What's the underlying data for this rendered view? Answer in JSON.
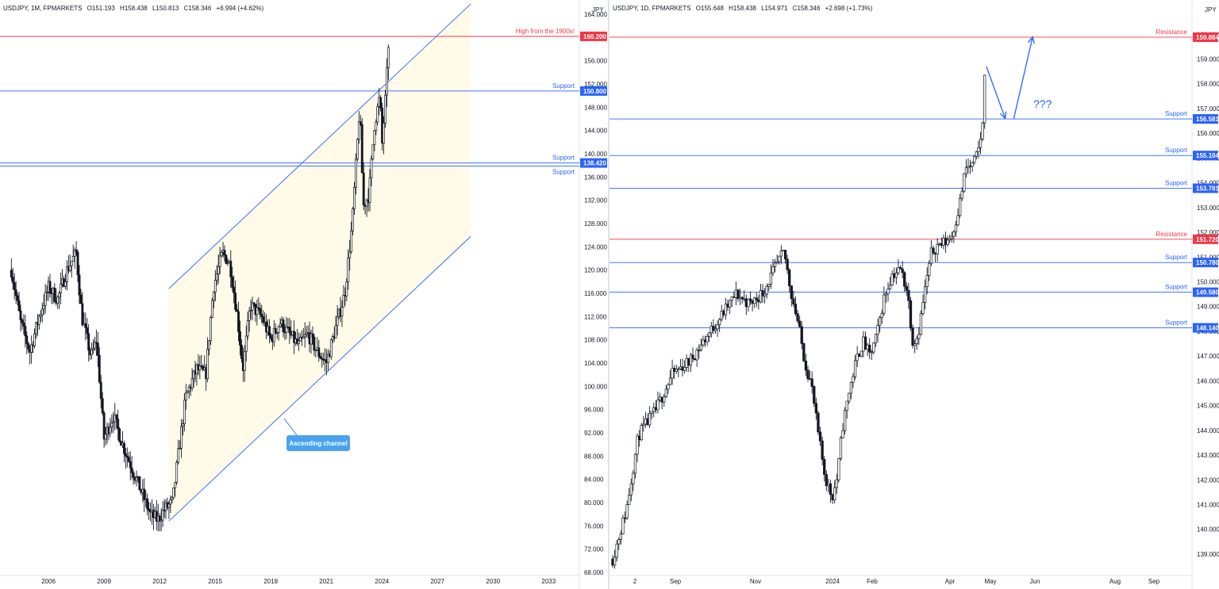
{
  "charts": {
    "left": {
      "symbol": "USDJPY, 1M, FPMARKETS",
      "open": "O151.193",
      "high": "H158.438",
      "low": "L150.813",
      "close": "C158.346",
      "change": "+6.994 (+4.62%)",
      "currency": "JPY"
    },
    "right": {
      "symbol": "USDJPY, 1D, FPMARKETS",
      "open": "O155.648",
      "high": "H158.438",
      "low": "L154.971",
      "close": "C158.346",
      "change": "+2.698 (+1.73%)",
      "currency": "JPY"
    }
  },
  "chart_data": [
    {
      "type": "candlestick",
      "title": "USDJPY, 1M, FPMARKETS",
      "ylabel": "JPY",
      "ylim": [
        68,
        166
      ],
      "y_ticks": [
        "164.000",
        "160.000",
        "156.000",
        "152.000",
        "148.000",
        "144.000",
        "140.000",
        "136.000",
        "132.000",
        "128.000",
        "124.000",
        "120.000",
        "116.000",
        "112.000",
        "108.000",
        "104.000",
        "100.000",
        "96.000",
        "92.000",
        "88.000",
        "84.000",
        "80.000",
        "76.000",
        "72.000",
        "68.000"
      ],
      "x_range": [
        2003.75,
        2035.0
      ],
      "x_ticks": [
        "2006",
        "2009",
        "2012",
        "2015",
        "2018",
        "2021",
        "2024",
        "2027",
        "2030",
        "2033"
      ],
      "horizontal_levels": [
        {
          "label": "High from the 1900s!",
          "price": 160.2,
          "tag": "160.200",
          "color": "#f23645"
        },
        {
          "label": "Support",
          "price": 150.8,
          "tag": "150.800",
          "color": "#2962ff"
        },
        {
          "label": "Support",
          "price": 138.42,
          "tag": "138.420",
          "color": "#2962ff"
        },
        {
          "label": "Support",
          "price": 137.9,
          "color": "#2962ff"
        }
      ],
      "channel": {
        "label": "Ascending channel",
        "upper": [
          [
            2012.5,
            116.8
          ],
          [
            2028.8,
            165.8
          ]
        ],
        "lower": [
          [
            2012.5,
            76.8
          ],
          [
            2028.8,
            125.8
          ]
        ]
      },
      "price_path": [
        [
          2004.0,
          120
        ],
        [
          2004.5,
          111
        ],
        [
          2005.0,
          106
        ],
        [
          2005.5,
          112
        ],
        [
          2006.0,
          117
        ],
        [
          2006.5,
          115
        ],
        [
          2007.0,
          120
        ],
        [
          2007.5,
          123
        ],
        [
          2007.8,
          112
        ],
        [
          2008.3,
          105
        ],
        [
          2008.6,
          108
        ],
        [
          2009.0,
          91
        ],
        [
          2009.5,
          95
        ],
        [
          2010.0,
          90
        ],
        [
          2010.5,
          86
        ],
        [
          2011.0,
          82
        ],
        [
          2011.5,
          78
        ],
        [
          2011.9,
          77
        ],
        [
          2012.3,
          79
        ],
        [
          2012.7,
          80
        ],
        [
          2013.0,
          88
        ],
        [
          2013.4,
          98
        ],
        [
          2014.0,
          103
        ],
        [
          2014.5,
          102
        ],
        [
          2014.9,
          117
        ],
        [
          2015.4,
          123
        ],
        [
          2015.8,
          121
        ],
        [
          2016.2,
          112
        ],
        [
          2016.5,
          103
        ],
        [
          2016.9,
          114
        ],
        [
          2017.5,
          112
        ],
        [
          2018.0,
          108
        ],
        [
          2018.5,
          111
        ],
        [
          2019.0,
          109
        ],
        [
          2019.5,
          107
        ],
        [
          2020.0,
          109
        ],
        [
          2020.5,
          106
        ],
        [
          2021.0,
          104
        ],
        [
          2021.5,
          110
        ],
        [
          2022.0,
          116
        ],
        [
          2022.4,
          128
        ],
        [
          2022.8,
          148
        ],
        [
          2023.0,
          131
        ],
        [
          2023.3,
          133
        ],
        [
          2023.6,
          145
        ],
        [
          2023.9,
          150
        ],
        [
          2024.0,
          141
        ],
        [
          2024.2,
          150
        ],
        [
          2024.35,
          158.3
        ]
      ]
    },
    {
      "type": "candlestick",
      "title": "USDJPY, 1D, FPMARKETS",
      "ylabel": "JPY",
      "ylim": [
        138.2,
        160.4
      ],
      "y_ticks": [
        "160.000",
        "159.000",
        "158.000",
        "157.000",
        "156.000",
        "155.000",
        "154.000",
        "153.000",
        "152.000",
        "151.000",
        "150.000",
        "149.000",
        "148.000",
        "147.000",
        "146.000",
        "145.000",
        "144.000",
        "143.000",
        "142.000",
        "141.000",
        "140.000",
        "139.000"
      ],
      "x_ticks": [
        "2",
        "Sep",
        "Nov",
        "2024",
        "Feb",
        "Apr",
        "May",
        "Jun",
        "Aug",
        "Sep"
      ],
      "horizontal_levels": [
        {
          "label": "Resistance",
          "price": 159.884,
          "tag": "159.884",
          "color": "#f23645"
        },
        {
          "label": "Support",
          "price": 156.581,
          "tag": "156.581",
          "color": "#2962ff"
        },
        {
          "label": "Support",
          "price": 155.104,
          "tag": "155.104",
          "color": "#2962ff"
        },
        {
          "label": "Support",
          "price": 153.781,
          "tag": "153.781",
          "color": "#2962ff"
        },
        {
          "label": "Resistance",
          "price": 151.72,
          "tag": "151.720",
          "color": "#f23645"
        },
        {
          "label": "Support",
          "price": 150.78,
          "tag": "150.780",
          "color": "#2962ff"
        },
        {
          "label": "Support",
          "price": 149.58,
          "tag": "149.580",
          "color": "#2962ff"
        },
        {
          "label": "Support",
          "price": 148.14,
          "tag": "148.140",
          "color": "#2962ff"
        }
      ],
      "annotation": "???",
      "price_path": [
        [
          0,
          138.8
        ],
        [
          8,
          140.8
        ],
        [
          15,
          143.8
        ],
        [
          25,
          144.8
        ],
        [
          35,
          146.3
        ],
        [
          45,
          146.8
        ],
        [
          55,
          147.8
        ],
        [
          65,
          148.8
        ],
        [
          72,
          149.5
        ],
        [
          80,
          149.1
        ],
        [
          88,
          149.6
        ],
        [
          95,
          150.6
        ],
        [
          100,
          151.2
        ],
        [
          104,
          149.6
        ],
        [
          108,
          148.4
        ],
        [
          112,
          146.8
        ],
        [
          116,
          145.8
        ],
        [
          120,
          143.8
        ],
        [
          124,
          142.1
        ],
        [
          128,
          141.3
        ],
        [
          131,
          142.1
        ],
        [
          134,
          144.1
        ],
        [
          138,
          145.6
        ],
        [
          142,
          146.8
        ],
        [
          146,
          147.6
        ],
        [
          150,
          147.0
        ],
        [
          154,
          147.8
        ],
        [
          158,
          149.3
        ],
        [
          163,
          150.3
        ],
        [
          168,
          150.5
        ],
        [
          172,
          149.6
        ],
        [
          175,
          147.6
        ],
        [
          178,
          147.8
        ],
        [
          182,
          149.6
        ],
        [
          186,
          151.2
        ],
        [
          190,
          151.5
        ],
        [
          194,
          151.6
        ],
        [
          198,
          151.9
        ],
        [
          202,
          153.0
        ],
        [
          206,
          154.6
        ],
        [
          210,
          154.7
        ],
        [
          213,
          155.2
        ],
        [
          216,
          156.4
        ],
        [
          217,
          158.35
        ]
      ],
      "arrows": [
        {
          "from": [
            218,
            158.7
          ],
          "to": [
            229,
            156.6
          ]
        },
        {
          "from": [
            234,
            156.6
          ],
          "to": [
            245,
            159.9
          ]
        }
      ]
    }
  ]
}
